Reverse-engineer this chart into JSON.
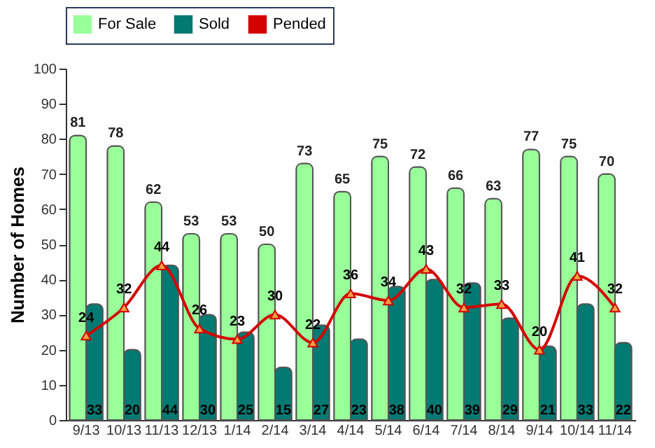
{
  "chart_data": {
    "type": "bar",
    "ylabel": "Number of Homes",
    "categories": [
      "9/13",
      "10/13",
      "11/13",
      "12/13",
      "1/14",
      "2/14",
      "3/14",
      "4/14",
      "5/14",
      "6/14",
      "7/14",
      "8/14",
      "9/14",
      "10/14",
      "11/14"
    ],
    "series": [
      {
        "name": "For Sale",
        "color": "#99ff99",
        "values": [
          81,
          78,
          62,
          53,
          53,
          50,
          73,
          65,
          75,
          72,
          66,
          63,
          77,
          75,
          70
        ]
      },
      {
        "name": "Sold",
        "color": "#007a72",
        "values": [
          33,
          20,
          44,
          30,
          25,
          15,
          27,
          23,
          38,
          40,
          39,
          29,
          21,
          33,
          22
        ]
      },
      {
        "name": "Pended",
        "type": "line",
        "color": "#d40000",
        "marker": "triangle",
        "values": [
          24,
          32,
          44,
          26,
          23,
          30,
          22,
          36,
          34,
          43,
          32,
          33,
          20,
          41,
          32
        ]
      }
    ],
    "ylim": [
      0,
      100
    ],
    "yticks": [
      0,
      10,
      20,
      30,
      40,
      50,
      60,
      70,
      80,
      90,
      100
    ],
    "grid": false,
    "legend": "top",
    "data_labels": true
  }
}
